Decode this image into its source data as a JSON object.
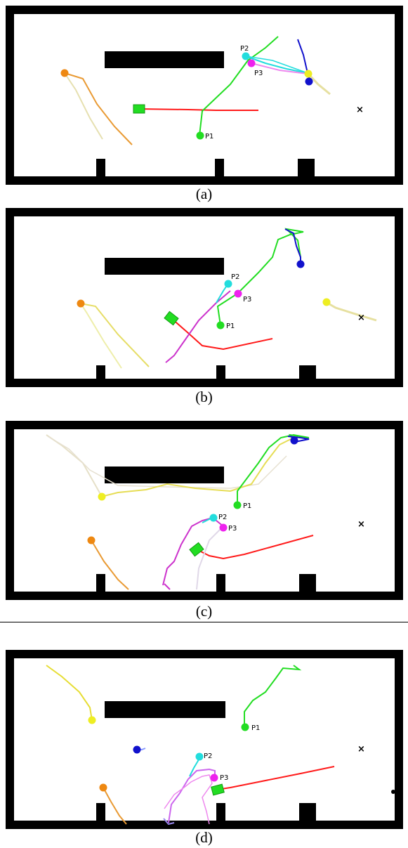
{
  "figure": {
    "panels": [
      {
        "caption": "(a)",
        "labels": {
          "p1": "P1",
          "p2": "P2",
          "p3": "P3"
        }
      },
      {
        "caption": "(b)",
        "labels": {
          "p1": "P1",
          "p2": "P2",
          "p3": "P3"
        }
      },
      {
        "caption": "(c)",
        "labels": {
          "p1": "P1",
          "p2": "P2",
          "p3": "P3"
        }
      },
      {
        "caption": "(d)",
        "labels": {
          "p1": "P1",
          "p2": "P2",
          "p3": "P3"
        }
      }
    ],
    "goal_marker": "×",
    "colors": {
      "wall": "#000000",
      "robot_path": "#ff1a1a",
      "robot": "#22dd22",
      "p1": "#22dd22",
      "p2": "#22dddd",
      "p3": "#ee22ee",
      "orange_agent": "#ee8811",
      "yellow_agent": "#eeee22",
      "blue_agent": "#1111cc"
    }
  }
}
